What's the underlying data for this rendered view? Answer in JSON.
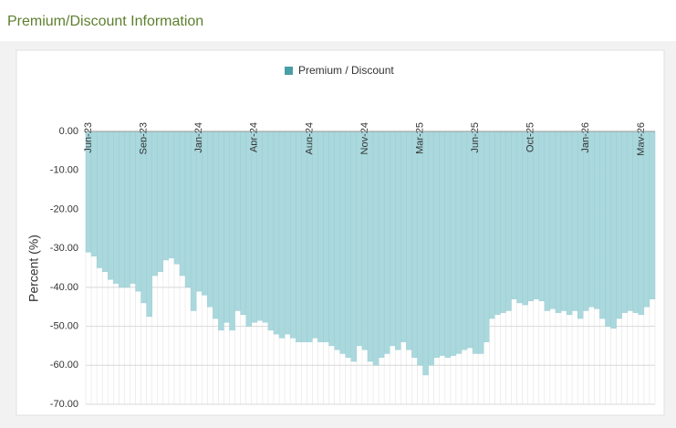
{
  "chart_data": {
    "type": "bar",
    "title": "Premium/Discount Information",
    "ylabel": "Percent (%)",
    "categories": [
      "Jun-23",
      null,
      null,
      null,
      null,
      null,
      null,
      null,
      null,
      null,
      "Sep-23",
      null,
      null,
      null,
      null,
      null,
      null,
      null,
      null,
      null,
      "Jan-24",
      null,
      null,
      null,
      null,
      null,
      null,
      null,
      null,
      null,
      "Apr-24",
      null,
      null,
      null,
      null,
      null,
      null,
      null,
      null,
      null,
      "Aug-24",
      null,
      null,
      null,
      null,
      null,
      null,
      null,
      null,
      null,
      "Nov-24",
      null,
      null,
      null,
      null,
      null,
      null,
      null,
      null,
      null,
      "Mar-25",
      null,
      null,
      null,
      null,
      null,
      null,
      null,
      null,
      null,
      "Jun-25",
      null,
      null,
      null,
      null,
      null,
      null,
      null,
      null,
      null,
      "Oct-25",
      null,
      null,
      null,
      null,
      null,
      null,
      null,
      null,
      null,
      "Jan-26",
      null,
      null,
      null,
      null,
      null,
      null,
      null,
      null,
      null,
      "May-26",
      null,
      null
    ],
    "series": [
      {
        "name": "Premium / Discount",
        "color": "#aad8dd",
        "legend_color": "#4a9ea6",
        "values": [
          -31,
          -32,
          -35,
          -36,
          -38,
          -39,
          -40,
          -40,
          -39,
          -41,
          -44,
          -47.5,
          -37,
          -36,
          -33,
          -32.5,
          -34,
          -37,
          -40,
          -46,
          -41,
          -42,
          -45,
          -48,
          -51,
          -49,
          -51,
          -46,
          -47,
          -50,
          -49,
          -48.5,
          -49,
          -51,
          -52,
          -53,
          -52,
          -53,
          -54,
          -54,
          -54,
          -53,
          -54,
          -54,
          -55,
          -56,
          -57,
          -58,
          -59,
          -55,
          -56,
          -59,
          -60,
          -58,
          -57,
          -55,
          -56,
          -54,
          -56,
          -58,
          -60,
          -62.5,
          -60,
          -58,
          -57.5,
          -58,
          -57.5,
          -57,
          -56,
          -55.5,
          -57,
          -57,
          -54,
          -48,
          -47,
          -46.5,
          -46,
          -43,
          -44,
          -44.5,
          -43.5,
          -43,
          -43.5,
          -46,
          -45.5,
          -46.5,
          -46,
          -47,
          -46,
          -48,
          -46,
          -45,
          -45.5,
          -48,
          -50,
          -50.5,
          -48,
          -46.5,
          -46,
          -46.5,
          -47,
          -45,
          -43
        ]
      }
    ],
    "ylim": [
      -70,
      0
    ],
    "yticks": [
      {
        "value": 0,
        "label": "0.00"
      },
      {
        "value": -10,
        "label": "-10.00"
      },
      {
        "value": -20,
        "label": "-20.00"
      },
      {
        "value": -30,
        "label": "-30.00"
      },
      {
        "value": -40,
        "label": "-40.00"
      },
      {
        "value": -50,
        "label": "-50.00"
      },
      {
        "value": -60,
        "label": "-60.00"
      },
      {
        "value": -70,
        "label": "-70.00"
      }
    ],
    "grid": true,
    "legend": "top"
  }
}
